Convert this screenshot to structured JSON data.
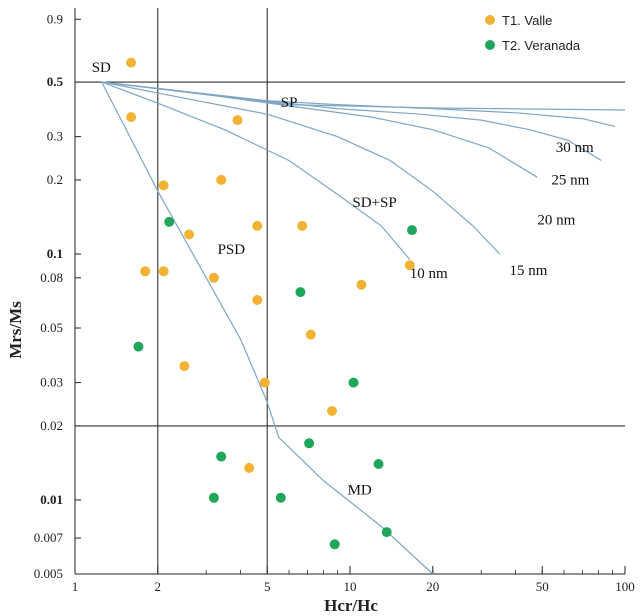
{
  "chart_data": {
    "type": "scatter",
    "x_scale": "log",
    "y_scale": "log",
    "xlabel": "Hcr/Hc",
    "ylabel": "Mrs/Ms",
    "xlim": [
      1,
      100
    ],
    "ylim": [
      0.005,
      1
    ],
    "x_ticks": [
      {
        "v": 1,
        "label": "1"
      },
      {
        "v": 2,
        "label": "2"
      },
      {
        "v": 5,
        "label": "5"
      },
      {
        "v": 10,
        "label": "10"
      },
      {
        "v": 20,
        "label": "20"
      },
      {
        "v": 50,
        "label": "50"
      },
      {
        "v": 100,
        "label": "100"
      }
    ],
    "y_ticks": [
      {
        "v": 0.9,
        "label": "0.9",
        "bold": false
      },
      {
        "v": 0.5,
        "label": "0.5",
        "bold": true
      },
      {
        "v": 0.3,
        "label": "0.3",
        "bold": false
      },
      {
        "v": 0.2,
        "label": "0.2",
        "bold": false
      },
      {
        "v": 0.1,
        "label": "0.1",
        "bold": true
      },
      {
        "v": 0.08,
        "label": "0.08",
        "bold": false
      },
      {
        "v": 0.05,
        "label": "0.05",
        "bold": false
      },
      {
        "v": 0.03,
        "label": "0.03",
        "bold": false
      },
      {
        "v": 0.02,
        "label": "0.02",
        "bold": false
      },
      {
        "v": 0.01,
        "label": "0.01",
        "bold": true
      },
      {
        "v": 0.007,
        "label": "0.007",
        "bold": false
      },
      {
        "v": 0.005,
        "label": "0.005",
        "bold": false
      }
    ],
    "reference_lines": {
      "horizontal": [
        0.5,
        0.02
      ],
      "vertical": [
        2,
        5
      ]
    },
    "region_labels": [
      {
        "text": "SD",
        "x": 1.15,
        "y": 0.55
      },
      {
        "text": "SP",
        "x": 5.6,
        "y": 0.395
      },
      {
        "text": "SD+SP",
        "x": 10.2,
        "y": 0.155
      },
      {
        "text": "PSD",
        "x": 3.3,
        "y": 0.1
      },
      {
        "text": "MD",
        "x": 9.8,
        "y": 0.0105
      }
    ],
    "mixing_curves": [
      {
        "label": "10 nm",
        "points": [
          [
            1.25,
            0.5
          ],
          [
            2,
            0.41
          ],
          [
            3.5,
            0.32
          ],
          [
            6,
            0.24
          ],
          [
            9,
            0.175
          ],
          [
            13,
            0.13
          ],
          [
            16.5,
            0.095
          ]
        ]
      },
      {
        "label": "15 nm",
        "points": [
          [
            1.25,
            0.5
          ],
          [
            2.5,
            0.43
          ],
          [
            5,
            0.37
          ],
          [
            9,
            0.3
          ],
          [
            14,
            0.24
          ],
          [
            20,
            0.18
          ],
          [
            28,
            0.13
          ],
          [
            35,
            0.1
          ]
        ]
      },
      {
        "label": "20 nm",
        "points": [
          [
            1.25,
            0.5
          ],
          [
            3,
            0.445
          ],
          [
            6,
            0.4
          ],
          [
            12,
            0.36
          ],
          [
            20,
            0.32
          ],
          [
            32,
            0.27
          ],
          [
            48,
            0.205
          ]
        ]
      },
      {
        "label": "25 nm",
        "points": [
          [
            1.25,
            0.5
          ],
          [
            4,
            0.43
          ],
          [
            9,
            0.39
          ],
          [
            18,
            0.37
          ],
          [
            30,
            0.35
          ],
          [
            45,
            0.32
          ],
          [
            62,
            0.29
          ],
          [
            82,
            0.24
          ]
        ]
      },
      {
        "label": "30 nm",
        "points": [
          [
            1.25,
            0.5
          ],
          [
            5,
            0.42
          ],
          [
            9,
            0.405
          ],
          [
            20,
            0.39
          ],
          [
            40,
            0.375
          ],
          [
            70,
            0.355
          ],
          [
            92,
            0.33
          ]
        ]
      },
      {
        "label": "",
        "points": [
          [
            1.25,
            0.5
          ],
          [
            6,
            0.405
          ],
          [
            20,
            0.392
          ],
          [
            50,
            0.388
          ],
          [
            100,
            0.385
          ]
        ]
      }
    ],
    "md_curve": [
      [
        1.25,
        0.5
      ],
      [
        2,
        0.18
      ],
      [
        3,
        0.08
      ],
      [
        4,
        0.045
      ],
      [
        5,
        0.025
      ],
      [
        5.5,
        0.018
      ],
      [
        8,
        0.012
      ],
      [
        13,
        0.0078
      ],
      [
        20,
        0.005
      ]
    ],
    "curve_labels": [
      {
        "text": "10 nm",
        "x": 16.5,
        "y": 0.08
      },
      {
        "text": "15 nm",
        "x": 38,
        "y": 0.082
      },
      {
        "text": "20 nm",
        "x": 48,
        "y": 0.132
      },
      {
        "text": "25 nm",
        "x": 54,
        "y": 0.192
      },
      {
        "text": "30 nm",
        "x": 56,
        "y": 0.26
      }
    ],
    "series": [
      {
        "name": "T1. Valle",
        "color": "#f2b233",
        "points": [
          [
            1.6,
            0.6
          ],
          [
            1.6,
            0.36
          ],
          [
            2.1,
            0.19
          ],
          [
            3.9,
            0.35
          ],
          [
            3.4,
            0.2
          ],
          [
            2.6,
            0.12
          ],
          [
            4.6,
            0.13
          ],
          [
            6.7,
            0.13
          ],
          [
            1.8,
            0.085
          ],
          [
            2.1,
            0.085
          ],
          [
            3.2,
            0.08
          ],
          [
            4.6,
            0.065
          ],
          [
            11,
            0.075
          ],
          [
            16.5,
            0.09
          ],
          [
            7.2,
            0.047
          ],
          [
            2.5,
            0.035
          ],
          [
            4.9,
            0.03
          ],
          [
            8.6,
            0.023
          ],
          [
            4.3,
            0.0135
          ]
        ]
      },
      {
        "name": "T2. Veranada",
        "color": "#1fa65a",
        "points": [
          [
            2.2,
            0.135
          ],
          [
            16.8,
            0.125
          ],
          [
            6.6,
            0.07
          ],
          [
            1.7,
            0.042
          ],
          [
            10.3,
            0.03
          ],
          [
            7.1,
            0.017
          ],
          [
            3.4,
            0.015
          ],
          [
            12.7,
            0.014
          ],
          [
            3.2,
            0.0102
          ],
          [
            5.6,
            0.0102
          ],
          [
            13.6,
            0.0074
          ],
          [
            8.8,
            0.0066
          ]
        ]
      }
    ],
    "legend": "top-right"
  }
}
